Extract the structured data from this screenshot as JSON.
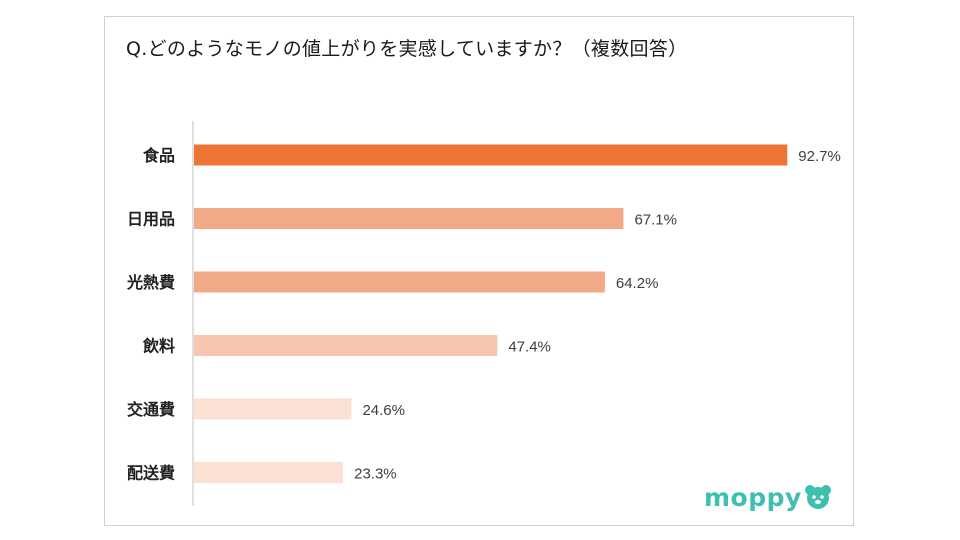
{
  "title": "Q.どのようなモノの値上がりを実感していますか？（複数回答）",
  "brand": "moppy",
  "colors": {
    "brand": "#3fbfb0",
    "axis": "#bfbfbf",
    "label": "#222222",
    "value": "#404040"
  },
  "chart_data": {
    "type": "bar",
    "orientation": "horizontal",
    "categories": [
      "食品",
      "日用品",
      "光熱費",
      "飲料",
      "交通費",
      "配送費"
    ],
    "values": [
      92.7,
      67.1,
      64.2,
      47.4,
      24.6,
      23.3
    ],
    "value_labels": [
      "92.7%",
      "67.1%",
      "64.2%",
      "47.4%",
      "24.6%",
      "23.3%"
    ],
    "bar_colors": [
      "#ed7433",
      "#f1a987",
      "#f1a987",
      "#f6c6ae",
      "#fbe1d3",
      "#fbe1d3"
    ],
    "unit": "%",
    "xlim": [
      0,
      100
    ],
    "grid": false,
    "legend": "none"
  }
}
